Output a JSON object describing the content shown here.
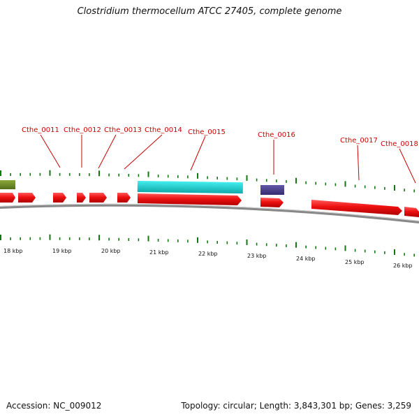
{
  "title": "Clostridium thermocellum ATCC 27405, complete genome",
  "footer": {
    "accession": "Accession: NC_009012",
    "summary": "Topology: circular; Length: 3,843,301 bp; Genes: 3,259"
  },
  "colors": {
    "cds_forward": "#ee1111",
    "backbone": "#888888",
    "tick": "#117711",
    "label": "#cc0000",
    "olive_feature": "#6b8e23",
    "cyan_feature": "#22cccc",
    "purple_feature": "#4a3f8c"
  },
  "chart_data": {
    "type": "linear-genome-map",
    "scale_unit": "kbp",
    "scale_labels": [
      "18 kbp",
      "19 kbp",
      "20 kbp",
      "21 kbp",
      "22 kbp",
      "23 kbp",
      "24 kbp",
      "25 kbp",
      "26 kbp"
    ],
    "gene_labels": [
      "Cthe_0011",
      "Cthe_0012",
      "Cthe_0013",
      "Cthe_0014",
      "Cthe_0015",
      "Cthe_0016",
      "Cthe_0017",
      "Cthe_0018"
    ]
  }
}
